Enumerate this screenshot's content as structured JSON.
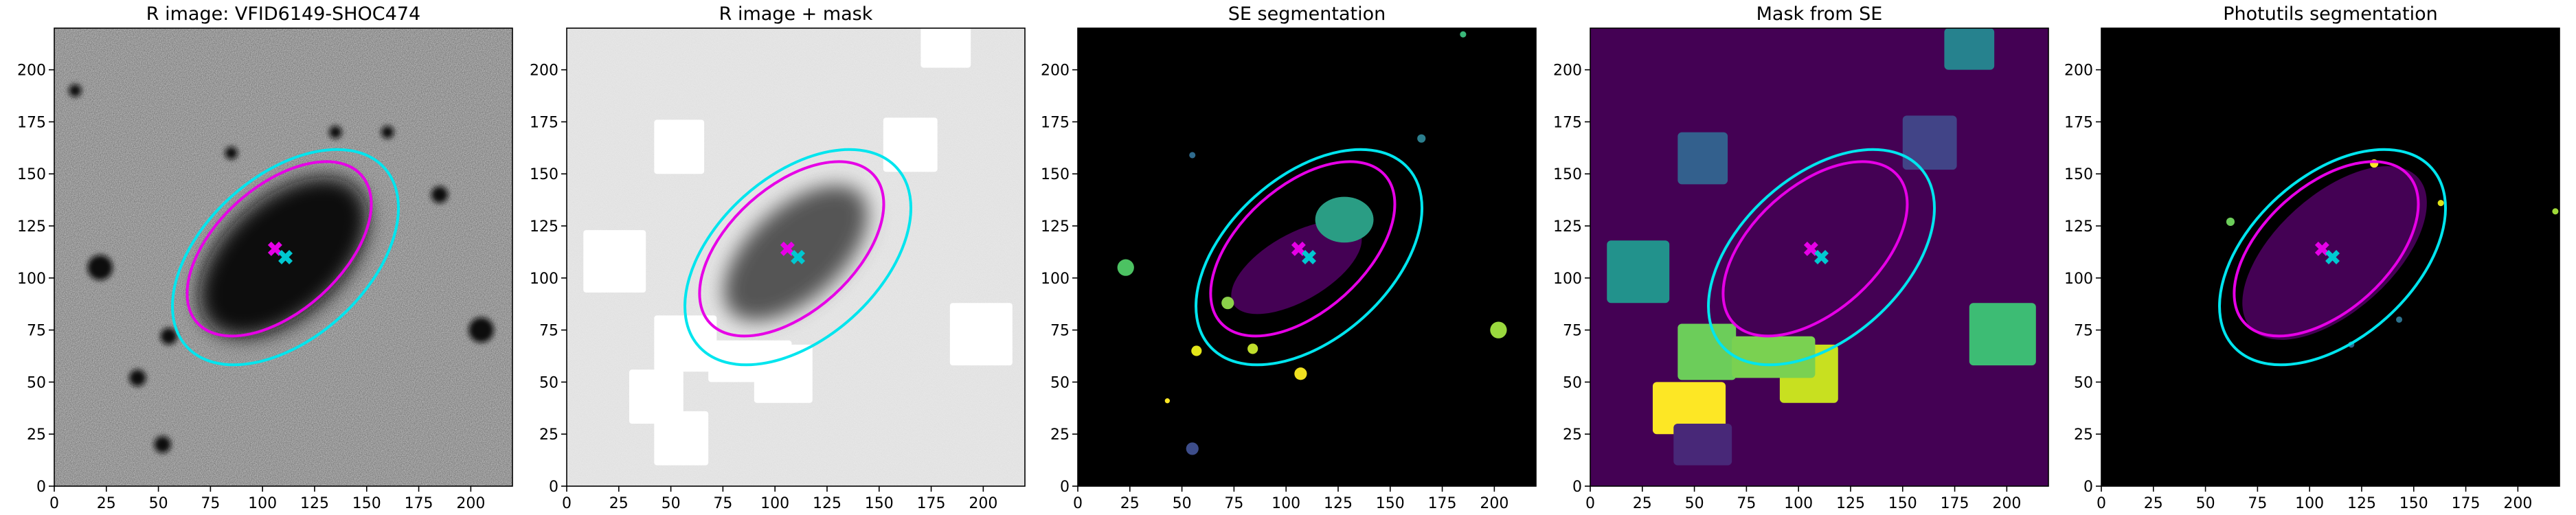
{
  "chart_data": [
    {
      "type": "image",
      "title": "R image: VFID6149-SHOC474",
      "xlim": [
        0,
        220
      ],
      "ylim": [
        0,
        220
      ],
      "xticks": [
        0,
        25,
        50,
        75,
        100,
        125,
        150,
        175,
        200
      ],
      "yticks": [
        0,
        25,
        50,
        75,
        100,
        125,
        150,
        175,
        200
      ],
      "ellipses": [
        {
          "color": "#00e5ee",
          "cx": 111,
          "cy": 110,
          "rx": 64,
          "ry": 39,
          "angle": 42
        },
        {
          "color": "#e600e6",
          "cx": 108,
          "cy": 114,
          "rx": 53,
          "ry": 30,
          "angle": 42
        }
      ],
      "markers": [
        {
          "color": "#e600e6",
          "x": 106,
          "y": 114
        },
        {
          "color": "#00c8d0",
          "x": 111,
          "y": 110
        }
      ]
    },
    {
      "type": "image",
      "title": "R image + mask",
      "xlim": [
        0,
        220
      ],
      "ylim": [
        0,
        220
      ],
      "xticks": [
        0,
        25,
        50,
        75,
        100,
        125,
        150,
        175,
        200
      ],
      "yticks": [
        0,
        25,
        50,
        75,
        100,
        125,
        150,
        175,
        200
      ],
      "ellipses": [
        {
          "color": "#00e5ee",
          "cx": 111,
          "cy": 110,
          "rx": 64,
          "ry": 39,
          "angle": 42
        },
        {
          "color": "#e600e6",
          "cx": 108,
          "cy": 114,
          "rx": 53,
          "ry": 30,
          "angle": 42
        }
      ],
      "markers": [
        {
          "color": "#e600e6",
          "x": 106,
          "y": 114
        },
        {
          "color": "#00c8d0",
          "x": 111,
          "y": 110
        }
      ]
    },
    {
      "type": "image",
      "title": "SE segmentation",
      "xlim": [
        0,
        220
      ],
      "ylim": [
        0,
        220
      ],
      "xticks": [
        0,
        25,
        50,
        75,
        100,
        125,
        150,
        175,
        200
      ],
      "yticks": [
        0,
        25,
        50,
        75,
        100,
        125,
        150,
        175,
        200
      ],
      "ellipses": [
        {
          "color": "#00e5ee",
          "cx": 111,
          "cy": 110,
          "rx": 64,
          "ry": 39,
          "angle": 42
        },
        {
          "color": "#e600e6",
          "cx": 108,
          "cy": 114,
          "rx": 53,
          "ry": 30,
          "angle": 42
        }
      ],
      "markers": [
        {
          "color": "#e600e6",
          "x": 106,
          "y": 114
        },
        {
          "color": "#00c8d0",
          "x": 111,
          "y": 110
        }
      ]
    },
    {
      "type": "image",
      "title": "Mask from SE",
      "xlim": [
        0,
        220
      ],
      "ylim": [
        0,
        220
      ],
      "xticks": [
        0,
        25,
        50,
        75,
        100,
        125,
        150,
        175,
        200
      ],
      "yticks": [
        0,
        25,
        50,
        75,
        100,
        125,
        150,
        175,
        200
      ],
      "ellipses": [
        {
          "color": "#00e5ee",
          "cx": 111,
          "cy": 110,
          "rx": 64,
          "ry": 39,
          "angle": 42
        },
        {
          "color": "#e600e6",
          "cx": 108,
          "cy": 114,
          "rx": 53,
          "ry": 30,
          "angle": 42
        }
      ],
      "markers": [
        {
          "color": "#e600e6",
          "x": 106,
          "y": 114
        },
        {
          "color": "#00c8d0",
          "x": 111,
          "y": 110
        }
      ]
    },
    {
      "type": "image",
      "title": "Photutils segmentation",
      "xlim": [
        0,
        220
      ],
      "ylim": [
        0,
        220
      ],
      "xticks": [
        0,
        25,
        50,
        75,
        100,
        125,
        150,
        175,
        200
      ],
      "yticks": [
        0,
        25,
        50,
        75,
        100,
        125,
        150,
        175,
        200
      ],
      "ellipses": [
        {
          "color": "#00e5ee",
          "cx": 111,
          "cy": 110,
          "rx": 64,
          "ry": 39,
          "angle": 42
        },
        {
          "color": "#e600e6",
          "cx": 108,
          "cy": 114,
          "rx": 53,
          "ry": 30,
          "angle": 42
        }
      ],
      "markers": [
        {
          "color": "#e600e6",
          "x": 106,
          "y": 114
        },
        {
          "color": "#00c8d0",
          "x": 111,
          "y": 110
        }
      ]
    }
  ]
}
